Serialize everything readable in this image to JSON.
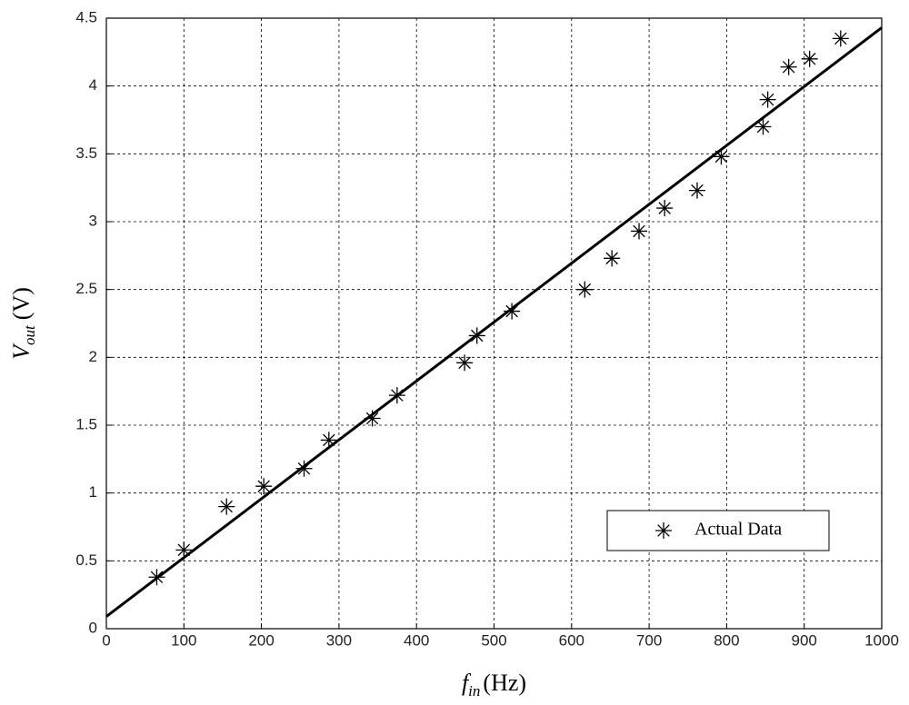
{
  "chart_data": {
    "type": "scatter",
    "xlabel": {
      "main": "f",
      "sub": "in",
      "unit": "(Hz)"
    },
    "ylabel": {
      "main": "V",
      "sub": "out",
      "unit": "(V)"
    },
    "xlim": [
      0,
      1000
    ],
    "ylim": [
      0,
      4.5
    ],
    "xticks": [
      0,
      100,
      200,
      300,
      400,
      500,
      600,
      700,
      800,
      900,
      1000
    ],
    "yticks": [
      0,
      0.5,
      1,
      1.5,
      2,
      2.5,
      3,
      3.5,
      4,
      4.5
    ],
    "grid": true,
    "legend": "lower right",
    "series": [
      {
        "name": "Actual Data",
        "color": "#000000",
        "marker": "asterisk",
        "x": [
          65,
          100,
          155,
          203,
          255,
          287,
          343,
          375,
          462,
          478,
          523,
          617,
          652,
          687,
          720,
          762,
          793,
          847,
          853,
          880,
          907,
          947
        ],
        "values": [
          0.38,
          0.58,
          0.9,
          1.05,
          1.18,
          1.39,
          1.55,
          1.72,
          1.96,
          2.16,
          2.34,
          2.5,
          2.73,
          2.93,
          3.1,
          3.23,
          3.48,
          3.7,
          3.9,
          4.14,
          4.2,
          4.35
        ]
      },
      {
        "color": "#000000",
        "marker": "line",
        "x": [
          0,
          1000
        ],
        "values": [
          0.09,
          4.43
        ]
      }
    ]
  }
}
